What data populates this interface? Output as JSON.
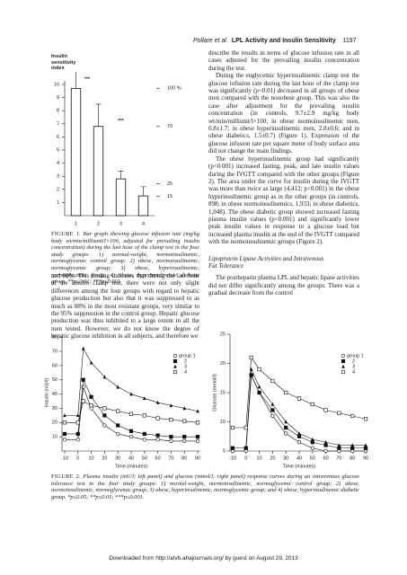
{
  "header": {
    "authors": "Pollare et al",
    "title": "LPL Activity and Insulin Sensitivity",
    "page": "1197"
  },
  "chart_data": [
    {
      "type": "bar",
      "y_label": "Insulin sensitivity index",
      "categories": [
        "1",
        "2",
        "3",
        "4"
      ],
      "values": [
        9.7,
        6.8,
        2.8,
        1.5
      ],
      "errors": [
        2.9,
        1.7,
        0.6,
        0.7
      ],
      "color": "#ffffff",
      "edgecolor": "#111111",
      "ylim": [
        0,
        10
      ],
      "yticks": [
        1,
        2,
        3,
        4,
        5,
        6,
        7,
        8,
        9,
        10
      ],
      "y2lim": [
        0,
        103
      ],
      "y2ticks": [
        {
          "value": 100,
          "label": "100 %"
        },
        70,
        25,
        15
      ],
      "annotations": [
        "***",
        "***"
      ]
    },
    {
      "type": "line",
      "y_label": "Insulin (mU/l)",
      "x_label": "Time (minutes)",
      "x": [
        -10,
        0,
        4,
        10,
        20,
        30,
        40,
        50,
        60,
        70,
        80,
        90
      ],
      "xlim": [
        -12,
        92
      ],
      "xticks": [
        -10,
        0,
        10,
        20,
        30,
        40,
        50,
        60,
        70,
        80,
        90
      ],
      "ylim": [
        0,
        82
      ],
      "yticks": [
        10,
        20,
        30,
        40,
        50,
        60,
        70,
        80
      ],
      "legend": "upper right",
      "series": [
        {
          "name": "group 1",
          "color": "#111111",
          "marker": "circle-open",
          "values": [
            8,
            8,
            45,
            30,
            18,
            12,
            10,
            8,
            8,
            7,
            7,
            7
          ]
        },
        {
          "name": "2",
          "color": "#111111",
          "marker": "square",
          "values": [
            12,
            12,
            50,
            38,
            25,
            18,
            14,
            12,
            11,
            10,
            10,
            10
          ]
        },
        {
          "name": "3",
          "color": "#111111",
          "marker": "triangle",
          "values": [
            25,
            25,
            72,
            62,
            52,
            45,
            40,
            37,
            34,
            32,
            30,
            28
          ]
        },
        {
          "name": "4",
          "color": "#111111",
          "marker": "square-open",
          "values": [
            20,
            20,
            35,
            32,
            30,
            28,
            26,
            25,
            23,
            22,
            21,
            20
          ]
        }
      ]
    },
    {
      "type": "line",
      "y_label": "Glucose (mmol/l)",
      "x_label": "Time (minutes)",
      "x": [
        -10,
        0,
        4,
        10,
        20,
        30,
        40,
        50,
        60,
        70,
        80,
        90
      ],
      "xlim": [
        -12,
        92
      ],
      "xticks": [
        -10,
        0,
        10,
        20,
        30,
        40,
        50,
        60,
        70,
        80,
        90
      ],
      "ylim": [
        5,
        25
      ],
      "yticks": [
        5,
        10,
        15,
        20,
        25
      ],
      "legend": "upper right",
      "series": [
        {
          "name": "group 1",
          "color": "#111111",
          "marker": "circle-open",
          "values": [
            5,
            5,
            18,
            15,
            11,
            8,
            6.5,
            5.5,
            5,
            5,
            5,
            5
          ]
        },
        {
          "name": "2",
          "color": "#111111",
          "marker": "square",
          "values": [
            5.5,
            5.5,
            18,
            15,
            12,
            9,
            7.5,
            6.5,
            6,
            5.5,
            5.5,
            5.5
          ]
        },
        {
          "name": "3",
          "color": "#111111",
          "marker": "triangle",
          "values": [
            5.5,
            5.5,
            19,
            16,
            13,
            10,
            8,
            7,
            6.5,
            6,
            6,
            6
          ]
        },
        {
          "name": "4",
          "color": "#111111",
          "marker": "square-open",
          "values": [
            9,
            9,
            21,
            19,
            17,
            15,
            14,
            13,
            12,
            11.5,
            11,
            10.5
          ]
        }
      ]
    }
  ],
  "figure1_caption": {
    "label": "FIGURE 1.",
    "text": "Bar graph showing glucose infusion rate (mg/kg body wt/min/milliunit/l×100, adjusted for prevailing insulin concentration) during the last hour of the clamp test in the four study groups: 1) normal-weight, normoinsulinemic, normoglycemic control group; 2) obese, normoinsulinemic, normoglycemic group; 3) obese, hyperinsulinemic, normoglycemic group; 4) obese, hyperinsulinemic diabetic group. **p≤0.01; ***p≤0.001."
  },
  "left_column": [
    "and 88%. This finding indicates that during the last hour of the insulin clamp test, there were not only slight differences among the four groups with regard to hepatic glucose production but also that it was suppressed to as much as 88% in the most resistant groups, very similar to the 95% suppression in the control group. Hepatic glucose production was thus inhibited to a large extent in all the men tested. However, we do not know the degree of hepatic glucose inhibition in all subjects, and therefore we"
  ],
  "right_column": {
    "paragraphs": [
      "describe the results in terms of glucose infusion rate in all cases adjusted for the prevailing insulin concentration during the test.",
      "During the euglycemic hyperinsulinemic clamp test the glucose infusion rate during the last hour of the clamp test was significantly (p<0.01) decreased in all groups of obese men compared with the nonobese group. This was also the case after adjustment for the prevailing insulin concentration (in controls, 9.7±2.9 mg/kg body wt/min/milliunit/l×100; in obese normoinsulinemic men, 6.8±1.7; in obese hyperinsulinemic men, 2.8±0.6; and in obese diabetics, 1.5±0.7) (Figure 1). Expression of the glucose infusion rate per square meter of body surface area did not change the main findings.",
      "The obese hyperinsulinemic group had significantly (p<0.001) increased fasting, peak, and late insulin values during the IVGTT compared with the other groups (Figure 2). The area under the curve for insulin during the IVGTT was more than twice as large (4,412; p<0.001) in the obese hyperinsulinemic group as in the other groups (in controls, 898; in obese normoinsulinemics, 1,933; in obese diabetics, 1,048). The obese diabetic group showed increased fasting plasma insulin values (p<0.001) and significantly lower peak insulin values in response to a glucose load but increased plasma insulin at the end of the IVGTT compared with the normoinsulinemic groups (Figure 2)."
    ],
    "heading": "Lipoprotein Lipase Activities and Intravenous Fat Tolerance",
    "last_paragraph": "The postheparin plasma LPL and hepatic lipase activities did not differ significantly among the groups. There was a gradual decrease from the control"
  },
  "figure2_caption": {
    "label": "FIGURE 2.",
    "text": "Plasma insulin (mU/l; left panel) and glucose (mmol/l; right panel) response curves during an intravenous glucose tolerance test in the four study groups: 1) normal-weight, normoinsulinemic, normoglycemic control group; 2) obese, normoinsulinemic, normoglycemic group; 3) obese, hyperinsulinemic, normoglycemic group; and 4) obese, hyperinsulinemic diabetic group. *p≤0.05; **p≤0.01; ***p≤0.001."
  },
  "footer": "Downloaded from http://atvb.ahajournals.org/ by guest on August 29, 2013"
}
